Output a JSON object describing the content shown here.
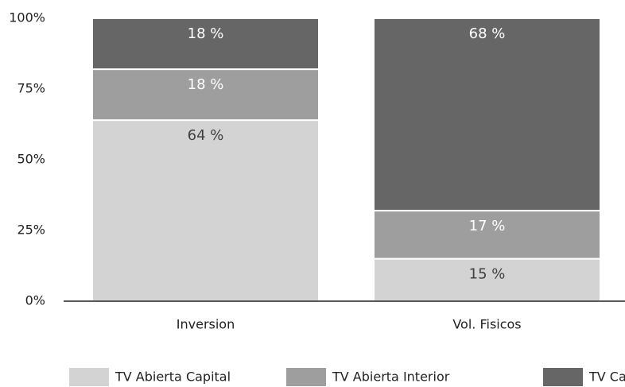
{
  "chart_data": {
    "type": "stacked_bar",
    "categories": [
      "Inversion",
      "Vol. Fisicos"
    ],
    "series": [
      {
        "name": "TV Abierta Capital",
        "color": "#d3d3d3",
        "label_color": "#404040",
        "values": [
          64,
          15
        ],
        "value_labels": [
          "64 %",
          "15 %"
        ]
      },
      {
        "name": "TV Abierta Interior",
        "color": "#9e9e9e",
        "label_color": "#ffffff",
        "values": [
          18,
          17
        ],
        "value_labels": [
          "18 %",
          "17 %"
        ]
      },
      {
        "name": "TV Cable",
        "color": "#666666",
        "label_color": "#ffffff",
        "values": [
          18,
          68
        ],
        "value_labels": [
          "18 %",
          "68 %"
        ]
      }
    ],
    "ylim": [
      0,
      100
    ],
    "yticks": [
      {
        "value": 0,
        "label": "0%"
      },
      {
        "value": 25,
        "label": "25%"
      },
      {
        "value": 50,
        "label": "50%"
      },
      {
        "value": 75,
        "label": "75%"
      },
      {
        "value": 100,
        "label": "100%"
      }
    ],
    "grid": false,
    "legend": "bottom"
  }
}
